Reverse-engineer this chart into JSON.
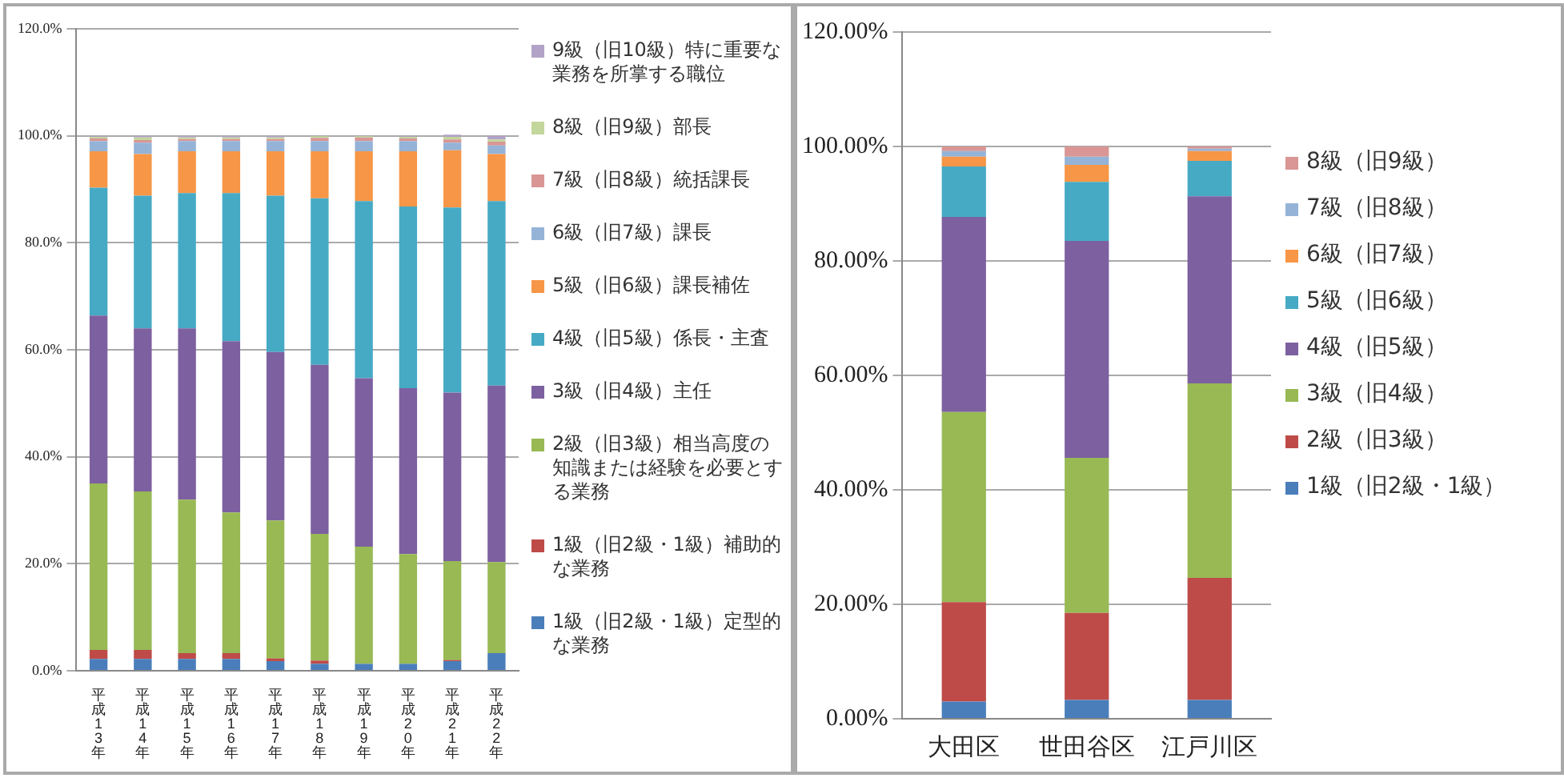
{
  "chart_data": [
    {
      "type": "bar",
      "stacked": true,
      "categories": [
        "平成13年",
        "平成14年",
        "平成15年",
        "平成16年",
        "平成17年",
        "平成18年",
        "平成19年",
        "平成20年",
        "平成21年",
        "平成22年"
      ],
      "series": [
        {
          "name": "1級（旧2級・1級）定型的な業務",
          "color": "#4a7ebb",
          "values": [
            2.2,
            2.2,
            2.2,
            2.2,
            1.8,
            1.3,
            1.3,
            1.3,
            1.8,
            3.3
          ]
        },
        {
          "name": "1級（旧2級・1級）補助的な業務",
          "color": "#be4b48",
          "values": [
            1.7,
            1.7,
            1.1,
            1.1,
            0.5,
            0.6,
            0,
            0,
            0.2,
            0
          ]
        },
        {
          "name": "2級（旧3級）相当高度の知識または経験を必要とする業務",
          "color": "#98b954",
          "values": [
            31.1,
            29.6,
            28.7,
            26.3,
            25.8,
            23.7,
            21.9,
            20.5,
            18.5,
            17.0
          ]
        },
        {
          "name": "3級（旧4級）主任",
          "color": "#7d60a0",
          "values": [
            31.4,
            30.5,
            32.0,
            32.0,
            31.5,
            31.6,
            31.5,
            31.0,
            31.5,
            33.0
          ]
        },
        {
          "name": "4級（旧5級）係長・主査",
          "color": "#46aac5",
          "values": [
            23.9,
            24.8,
            25.3,
            27.7,
            29.2,
            31.1,
            33.1,
            34.0,
            34.6,
            34.5
          ]
        },
        {
          "name": "5級（旧6級）課長補佐",
          "color": "#f79646",
          "values": [
            6.8,
            7.8,
            7.8,
            7.8,
            8.3,
            8.8,
            9.3,
            10.3,
            10.7,
            8.8
          ]
        },
        {
          "name": "6級（旧7級）課長",
          "color": "#95b3d7",
          "values": [
            1.9,
            2.1,
            1.9,
            1.9,
            1.9,
            1.9,
            1.9,
            1.9,
            1.4,
            1.6
          ]
        },
        {
          "name": "7級（旧8級）統括課長",
          "color": "#d99694",
          "values": [
            0.5,
            0.5,
            0.4,
            0.4,
            0.4,
            0.6,
            0.7,
            0.5,
            0.6,
            0.7
          ]
        },
        {
          "name": "8級（旧9級）部長",
          "color": "#c3d69b",
          "values": [
            0.3,
            0.5,
            0.3,
            0.3,
            0.3,
            0.3,
            0.2,
            0.3,
            0.5,
            0.4
          ]
        },
        {
          "name": "9級（旧10級）特に重要な業務を所掌する職位",
          "color": "#b3a2c7",
          "values": [
            0.2,
            0.3,
            0.3,
            0.3,
            0.3,
            0.1,
            0.1,
            0.2,
            0.4,
            0.7
          ]
        }
      ],
      "ylim": [
        0,
        120
      ],
      "yticks": [
        {
          "value": 0,
          "label": "0.0%"
        },
        {
          "value": 20,
          "label": "20.0%"
        },
        {
          "value": 40,
          "label": "40.0%"
        },
        {
          "value": 60,
          "label": "60.0%"
        },
        {
          "value": 80,
          "label": "80.0%"
        },
        {
          "value": 100,
          "label": "100.0%"
        },
        {
          "value": 120,
          "label": "120.0%"
        }
      ],
      "grid": "y",
      "legend": "right"
    },
    {
      "type": "bar",
      "stacked": true,
      "categories": [
        "大田区",
        "世田谷区",
        "江戸川区"
      ],
      "series": [
        {
          "name": "1級（旧2級・1級）",
          "color": "#4a7ebb",
          "values": [
            3.0,
            3.3,
            3.3
          ]
        },
        {
          "name": "2級（旧3級）",
          "color": "#be4b48",
          "values": [
            17.4,
            15.2,
            21.3
          ]
        },
        {
          "name": "3級（旧4級）",
          "color": "#98b954",
          "values": [
            33.2,
            27.1,
            34.0
          ]
        },
        {
          "name": "4級（旧5級）",
          "color": "#7d60a0",
          "values": [
            34.1,
            37.9,
            32.7
          ]
        },
        {
          "name": "5級（旧6級）",
          "color": "#46aac5",
          "values": [
            8.8,
            10.3,
            6.2
          ]
        },
        {
          "name": "6級（旧7級）",
          "color": "#f79646",
          "values": [
            1.7,
            3.0,
            1.7
          ]
        },
        {
          "name": "7級（旧8級）",
          "color": "#95b3d7",
          "values": [
            1.0,
            1.4,
            0.4
          ]
        },
        {
          "name": "8級（旧9級）",
          "color": "#d99694",
          "values": [
            0.8,
            1.8,
            0.4
          ]
        }
      ],
      "ylim": [
        0,
        120
      ],
      "yticks": [
        {
          "value": 0,
          "label": "0.00%"
        },
        {
          "value": 20,
          "label": "20.00%"
        },
        {
          "value": 40,
          "label": "40.00%"
        },
        {
          "value": 60,
          "label": "60.00%"
        },
        {
          "value": 80,
          "label": "80.00%"
        },
        {
          "value": 100,
          "label": "100.00%"
        },
        {
          "value": 120,
          "label": "120.00%"
        }
      ],
      "grid": "y",
      "legend": "right"
    }
  ]
}
